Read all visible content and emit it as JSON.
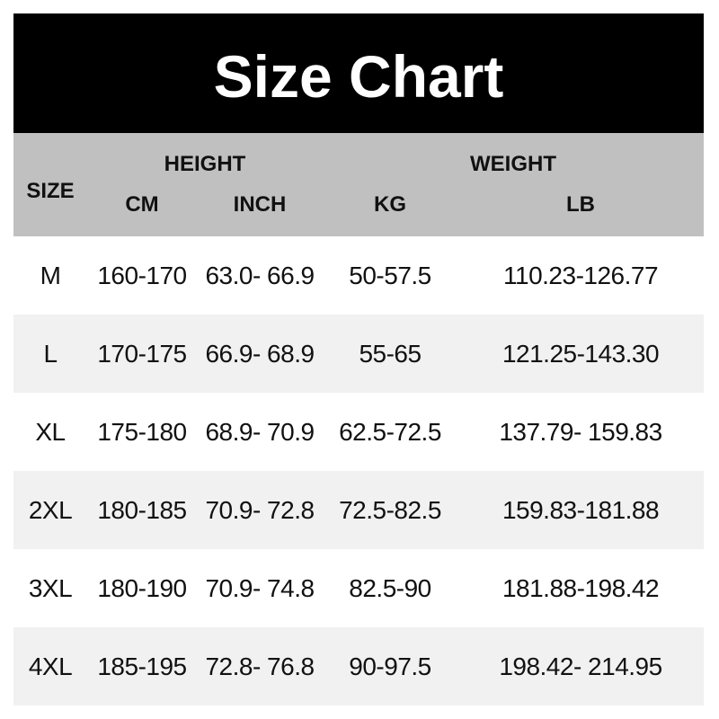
{
  "title_banner": {
    "title": "Size Chart"
  },
  "chart_data": {
    "type": "table",
    "title": "Size Chart",
    "header": {
      "size": "SIZE",
      "height": "HEIGHT",
      "weight": "WEIGHT",
      "cm": "CM",
      "inch": "INCH",
      "kg": "KG",
      "lb": "LB"
    },
    "column_groups": [
      {
        "label": "HEIGHT",
        "columns": [
          "CM",
          "INCH"
        ]
      },
      {
        "label": "WEIGHT",
        "columns": [
          "KG",
          "LB"
        ]
      }
    ],
    "rows": [
      {
        "size": "M",
        "cm": "160-170",
        "inch": "63.0- 66.9",
        "kg": "50-57.5",
        "lb": "110.23-126.77"
      },
      {
        "size": "L",
        "cm": "170-175",
        "inch": "66.9- 68.9",
        "kg": "55-65",
        "lb": "121.25-143.30"
      },
      {
        "size": "XL",
        "cm": "175-180",
        "inch": "68.9- 70.9",
        "kg": "62.5-72.5",
        "lb": "137.79- 159.83"
      },
      {
        "size": "2XL",
        "cm": "180-185",
        "inch": "70.9- 72.8",
        "kg": "72.5-82.5",
        "lb": "159.83-181.88"
      },
      {
        "size": "3XL",
        "cm": "180-190",
        "inch": "70.9- 74.8",
        "kg": "82.5-90",
        "lb": "181.88-198.42"
      },
      {
        "size": "4XL",
        "cm": "185-195",
        "inch": "72.8- 76.8",
        "kg": "90-97.5",
        "lb": "198.42- 214.95"
      }
    ]
  },
  "colors": {
    "banner_bg": "#000000",
    "banner_text": "#ffffff",
    "header_bg": "#c0c0c0",
    "row_stripe": "#f1f1f1",
    "row_plain": "#ffffff",
    "text": "#111111",
    "page_bg": "#ffffff"
  }
}
